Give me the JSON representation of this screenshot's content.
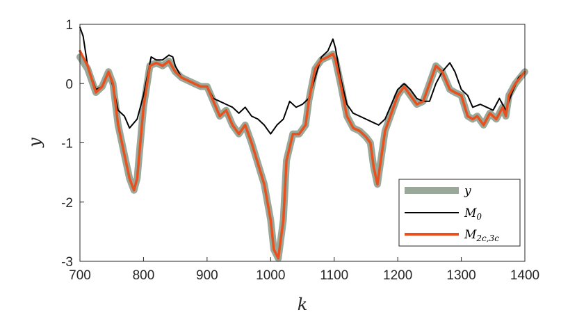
{
  "chart_data": {
    "type": "line",
    "xlabel": "k",
    "ylabel": "y",
    "xlim": [
      700,
      1400
    ],
    "ylim": [
      -3,
      1
    ],
    "xticks": [
      "700",
      "800",
      "900",
      "1000",
      "1100",
      "1200",
      "1300",
      "1400"
    ],
    "yticks": [
      "1",
      "0",
      "-1",
      "-2",
      "-3"
    ],
    "grid": false,
    "legend_position": "bottom-right",
    "colors": {
      "y": "#9aa89a",
      "M0": "#000000",
      "M2c3c": "#e8501e"
    },
    "series": [
      {
        "name": "y",
        "legend_label": "y",
        "x": [
          700,
          712,
          725,
          735,
          745,
          752,
          760,
          772,
          778,
          785,
          790,
          800,
          810,
          820,
          830,
          840,
          850,
          860,
          870,
          880,
          890,
          900,
          910,
          920,
          930,
          940,
          950,
          960,
          970,
          980,
          990,
          1000,
          1005,
          1012,
          1020,
          1025,
          1035,
          1045,
          1055,
          1060,
          1070,
          1080,
          1090,
          1098,
          1102,
          1110,
          1120,
          1130,
          1140,
          1150,
          1157,
          1162,
          1168,
          1172,
          1180,
          1190,
          1200,
          1210,
          1220,
          1230,
          1240,
          1250,
          1260,
          1270,
          1282,
          1290,
          1300,
          1310,
          1318,
          1325,
          1335,
          1345,
          1355,
          1365,
          1370,
          1375,
          1385,
          1400
        ],
        "values": [
          0.45,
          0.25,
          -0.15,
          -0.05,
          0.2,
          0.0,
          -0.7,
          -1.3,
          -1.6,
          -1.8,
          -1.6,
          -0.4,
          0.3,
          0.35,
          0.3,
          0.38,
          0.2,
          0.1,
          0.05,
          0.0,
          -0.05,
          -0.05,
          -0.3,
          -0.55,
          -0.45,
          -0.7,
          -0.85,
          -0.7,
          -1.0,
          -1.35,
          -1.7,
          -2.3,
          -2.8,
          -2.95,
          -2.3,
          -1.3,
          -0.85,
          -0.85,
          -0.7,
          -0.3,
          0.25,
          0.4,
          0.45,
          0.5,
          0.4,
          0.0,
          -0.55,
          -0.75,
          -0.8,
          -0.9,
          -1.0,
          -1.4,
          -1.7,
          -1.4,
          -0.8,
          -0.5,
          -0.2,
          -0.05,
          -0.2,
          -0.35,
          -0.3,
          0.0,
          0.3,
          0.2,
          -0.1,
          -0.15,
          -0.2,
          -0.55,
          -0.6,
          -0.55,
          -0.7,
          -0.5,
          -0.6,
          -0.4,
          -0.55,
          -0.2,
          0.0,
          0.2
        ]
      },
      {
        "name": "M0",
        "legend_label": "M",
        "legend_sub": "0",
        "x": [
          700,
          705,
          712,
          725,
          735,
          745,
          752,
          760,
          770,
          778,
          790,
          800,
          812,
          820,
          830,
          840,
          846,
          850,
          860,
          870,
          880,
          890,
          900,
          910,
          920,
          930,
          940,
          950,
          960,
          970,
          980,
          990,
          1000,
          1010,
          1020,
          1030,
          1040,
          1050,
          1060,
          1070,
          1080,
          1090,
          1098,
          1102,
          1110,
          1120,
          1130,
          1140,
          1150,
          1160,
          1170,
          1180,
          1190,
          1200,
          1210,
          1220,
          1230,
          1240,
          1250,
          1260,
          1270,
          1282,
          1290,
          1300,
          1310,
          1318,
          1330,
          1340,
          1350,
          1360,
          1370,
          1380,
          1390,
          1400
        ],
        "values": [
          0.95,
          0.8,
          0.3,
          -0.1,
          -0.05,
          0.2,
          -0.05,
          -0.45,
          -0.55,
          -0.75,
          -0.6,
          -0.2,
          0.45,
          0.4,
          0.4,
          0.48,
          0.45,
          0.3,
          0.1,
          0.05,
          0.0,
          -0.05,
          -0.05,
          -0.25,
          -0.3,
          -0.35,
          -0.4,
          -0.5,
          -0.4,
          -0.55,
          -0.6,
          -0.7,
          -0.85,
          -0.7,
          -0.6,
          -0.3,
          -0.4,
          -0.35,
          -0.25,
          0.1,
          0.45,
          0.55,
          0.75,
          0.6,
          0.1,
          -0.35,
          -0.5,
          -0.55,
          -0.6,
          -0.65,
          -0.7,
          -0.6,
          -0.35,
          -0.1,
          0.0,
          -0.1,
          -0.25,
          -0.3,
          -0.3,
          0.0,
          0.2,
          0.35,
          0.2,
          -0.1,
          -0.2,
          -0.4,
          -0.35,
          -0.4,
          -0.45,
          -0.25,
          -0.45,
          -0.15,
          0.1,
          0.2
        ]
      },
      {
        "name": "M2c3c",
        "legend_label": "M",
        "legend_sub": "2c,3c",
        "x": [
          700,
          712,
          725,
          735,
          745,
          752,
          760,
          772,
          778,
          785,
          790,
          800,
          810,
          820,
          830,
          840,
          850,
          860,
          870,
          880,
          890,
          900,
          910,
          920,
          930,
          940,
          950,
          960,
          970,
          980,
          990,
          1000,
          1005,
          1012,
          1020,
          1025,
          1035,
          1045,
          1055,
          1060,
          1070,
          1080,
          1090,
          1098,
          1102,
          1110,
          1120,
          1130,
          1140,
          1150,
          1157,
          1162,
          1168,
          1172,
          1180,
          1190,
          1200,
          1210,
          1220,
          1230,
          1240,
          1250,
          1260,
          1270,
          1282,
          1290,
          1300,
          1310,
          1318,
          1325,
          1335,
          1345,
          1355,
          1365,
          1370,
          1375,
          1385,
          1400
        ],
        "values": [
          0.55,
          0.3,
          -0.15,
          -0.05,
          0.2,
          0.0,
          -0.7,
          -1.3,
          -1.6,
          -1.8,
          -1.6,
          -0.4,
          0.3,
          0.35,
          0.3,
          0.38,
          0.2,
          0.1,
          0.05,
          0.0,
          -0.05,
          -0.05,
          -0.3,
          -0.55,
          -0.45,
          -0.7,
          -0.85,
          -0.7,
          -1.0,
          -1.35,
          -1.7,
          -2.3,
          -2.8,
          -2.95,
          -2.3,
          -1.3,
          -0.85,
          -0.85,
          -0.7,
          -0.3,
          0.25,
          0.4,
          0.45,
          0.5,
          0.4,
          0.0,
          -0.55,
          -0.75,
          -0.8,
          -0.9,
          -1.0,
          -1.4,
          -1.7,
          -1.4,
          -0.8,
          -0.5,
          -0.2,
          -0.05,
          -0.2,
          -0.35,
          -0.3,
          0.0,
          0.3,
          0.2,
          -0.1,
          -0.15,
          -0.2,
          -0.55,
          -0.6,
          -0.55,
          -0.7,
          -0.5,
          -0.6,
          -0.4,
          -0.55,
          -0.2,
          0.0,
          0.2
        ]
      }
    ]
  }
}
